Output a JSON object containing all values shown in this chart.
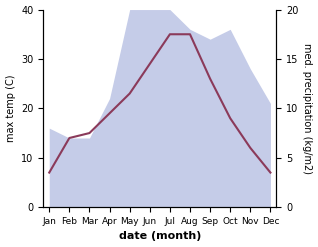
{
  "months": [
    "Jan",
    "Feb",
    "Mar",
    "Apr",
    "May",
    "Jun",
    "Jul",
    "Aug",
    "Sep",
    "Oct",
    "Nov",
    "Dec"
  ],
  "temperature": [
    7,
    14,
    15,
    19,
    23,
    29,
    35,
    35,
    26,
    18,
    12,
    7
  ],
  "precipitation": [
    8,
    7,
    7,
    11,
    20,
    20,
    20,
    18,
    17,
    18,
    14,
    10.5
  ],
  "temp_color": "#8B3A5A",
  "precip_fill_color": "#c5cce8",
  "xlabel": "date (month)",
  "ylabel_left": "max temp (C)",
  "ylabel_right": "med. precipitation (kg/m2)",
  "ylim_left": [
    0,
    40
  ],
  "ylim_right": [
    0,
    20
  ],
  "scale_factor": 2.0
}
